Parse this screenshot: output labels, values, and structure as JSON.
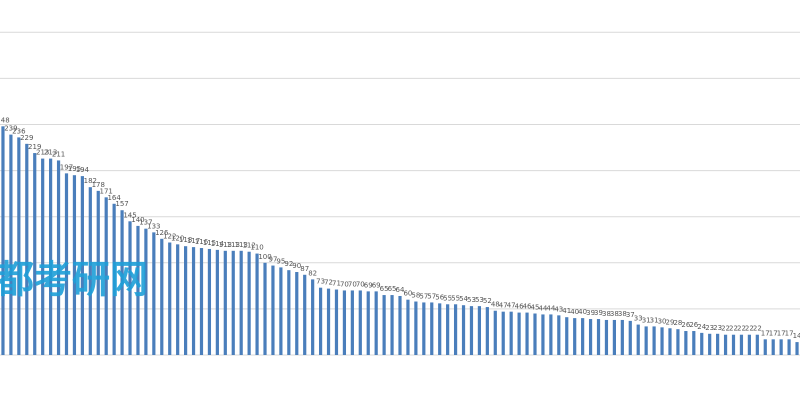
{
  "chart_data": {
    "type": "bar",
    "watermark": "都考研网",
    "categories": [
      null,
      null,
      null,
      null,
      null,
      null,
      null,
      null,
      null,
      null,
      null,
      null,
      null,
      null,
      null,
      null,
      null,
      null,
      null,
      null,
      null,
      null,
      null,
      null,
      null,
      null,
      null,
      null,
      null,
      null,
      null,
      null,
      null,
      null,
      null,
      null,
      null,
      null,
      null,
      null,
      null,
      null,
      null,
      null,
      null,
      null,
      null,
      null,
      null,
      null,
      null,
      null,
      null,
      null,
      null,
      null,
      null,
      null,
      null,
      null,
      null,
      null,
      null,
      null,
      null,
      null,
      null,
      null,
      null,
      null,
      null,
      null,
      null,
      null,
      null,
      null,
      null,
      null,
      null,
      null,
      null,
      null,
      null,
      null,
      null,
      null,
      null,
      null,
      null,
      null,
      null,
      null,
      null,
      null,
      null,
      null,
      null,
      null,
      null,
      null,
      null
    ],
    "values": [
      248,
      239,
      236,
      229,
      219,
      213,
      213,
      211,
      197,
      195,
      194,
      182,
      178,
      171,
      164,
      157,
      145,
      140,
      137,
      133,
      126,
      122,
      120,
      118,
      117,
      116,
      115,
      114,
      113,
      113,
      113,
      112,
      110,
      100,
      97,
      95,
      92,
      90,
      87,
      82,
      73,
      72,
      71,
      70,
      70,
      70,
      69,
      69,
      65,
      65,
      64,
      60,
      58,
      57,
      57,
      56,
      55,
      55,
      54,
      53,
      53,
      52,
      48,
      47,
      47,
      46,
      46,
      45,
      44,
      44,
      43,
      41,
      40,
      40,
      39,
      39,
      38,
      38,
      38,
      37,
      33,
      31,
      31,
      30,
      29,
      28,
      26,
      26,
      24,
      23,
      23,
      22,
      22,
      22,
      22,
      22,
      17,
      17,
      17,
      17,
      14
    ],
    "color": "#4a7ebb",
    "ylim": [
      0,
      385
    ],
    "yticks": [
      0,
      50,
      100,
      150,
      200,
      250,
      300,
      350
    ],
    "grid": true
  }
}
